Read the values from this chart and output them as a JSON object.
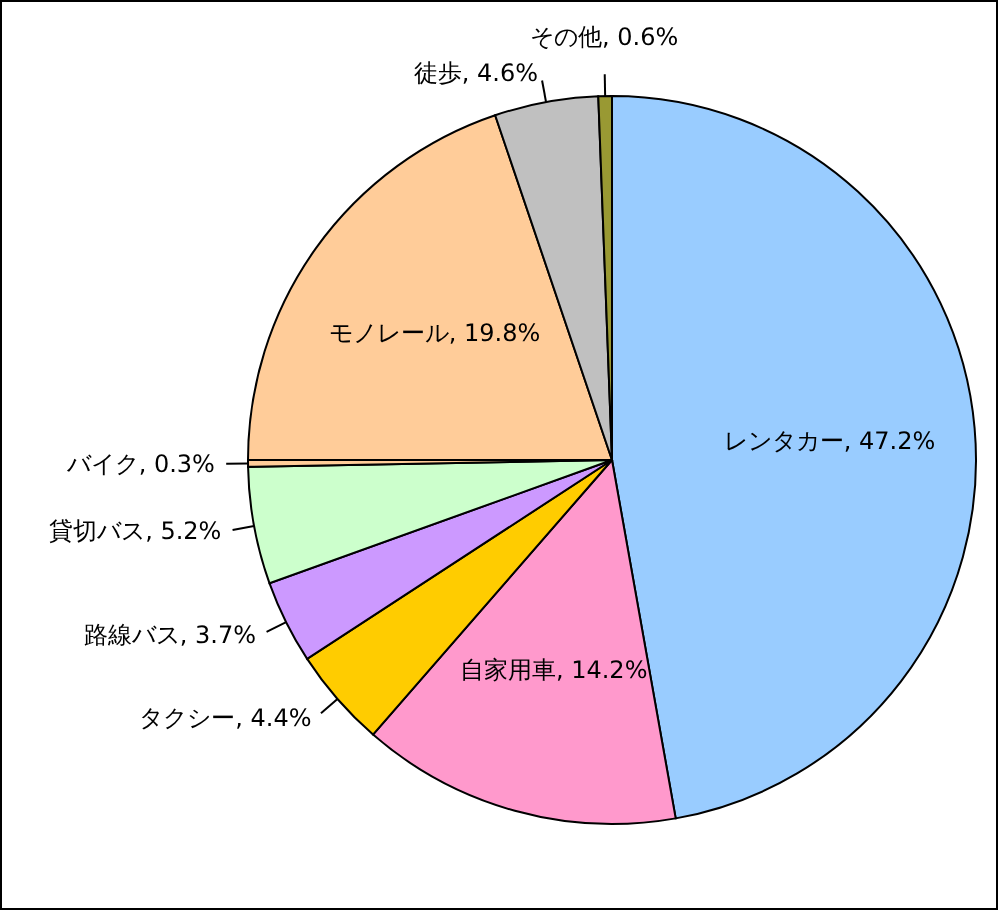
{
  "chart_data": {
    "type": "pie",
    "categories": [
      "レンタカー",
      "自家用車",
      "タクシー",
      "路線バス",
      "貸切バス",
      "バイク",
      "モノレール",
      "徒歩",
      "その他"
    ],
    "values": [
      47.2,
      14.2,
      4.4,
      3.7,
      5.2,
      0.3,
      19.8,
      4.6,
      0.6
    ],
    "value_labels": [
      "47.2%",
      "14.2%",
      "4.4%",
      "3.7%",
      "5.2%",
      "0.3%",
      "19.8%",
      "4.6%",
      "0.6%"
    ],
    "colors": [
      "#99ccff",
      "#ff99cc",
      "#ffcc00",
      "#cc99ff",
      "#ccffcc",
      "#ffcc99",
      "#ffcc99",
      "#c0c0c0",
      "#999933"
    ]
  }
}
